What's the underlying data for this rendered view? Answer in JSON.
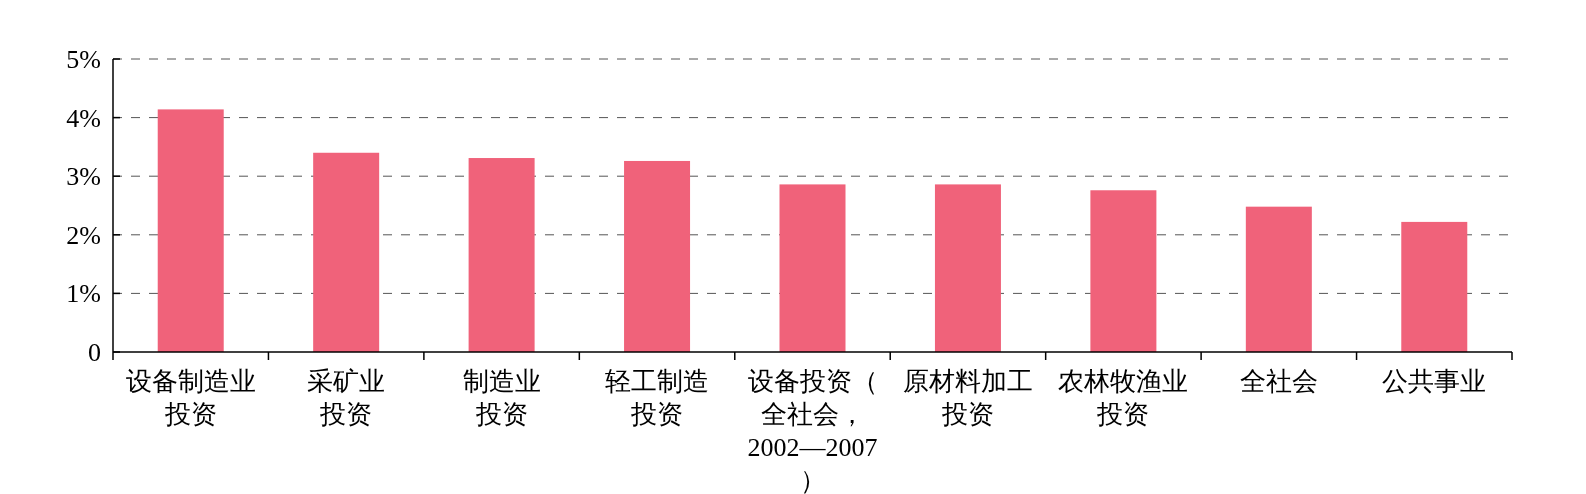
{
  "chart_data": {
    "type": "bar",
    "categories": [
      "设备制造业投资",
      "采矿业投资",
      "制造业投资",
      "轻工制造投资",
      "设备投资（全社会，2002—2007）",
      "原材料加工投资",
      "农林牧渔业投资",
      "全社会",
      "公共事业"
    ],
    "values": [
      4.14,
      3.4,
      3.31,
      3.26,
      2.86,
      2.86,
      2.76,
      2.48,
      2.22
    ],
    "color": "#f0627a",
    "ylim": [
      0,
      5
    ],
    "yticks": [
      0,
      {
        "value": 1,
        "label": "1%"
      },
      {
        "value": 2,
        "label": "2%"
      },
      {
        "value": 3,
        "label": "3%"
      },
      {
        "value": 4,
        "label": "4%"
      },
      {
        "value": 5,
        "label": "5%"
      }
    ],
    "grid": "y"
  }
}
